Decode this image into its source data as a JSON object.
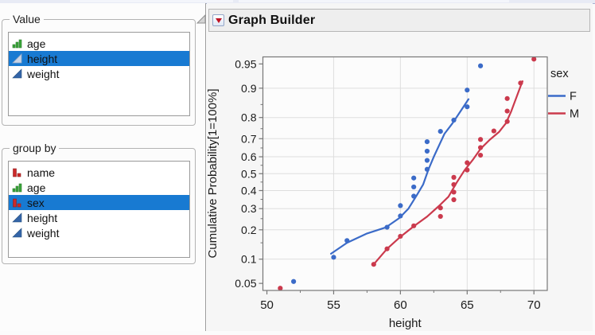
{
  "report": {
    "title": "Graph Builder"
  },
  "panels": {
    "value": {
      "title": "Value",
      "items": [
        {
          "label": "age",
          "icon": "green-bars-icon",
          "selected": false
        },
        {
          "label": "height",
          "icon": "pale-triangle-icon",
          "selected": true
        },
        {
          "label": "weight",
          "icon": "blue-triangle-icon",
          "selected": false
        }
      ]
    },
    "group_by": {
      "title": "group by",
      "items": [
        {
          "label": "name",
          "icon": "red-bars-icon",
          "selected": false
        },
        {
          "label": "age",
          "icon": "green-bars-icon",
          "selected": false
        },
        {
          "label": "sex",
          "icon": "red-bars-icon",
          "selected": true
        },
        {
          "label": "height",
          "icon": "blue-triangle-icon",
          "selected": false
        },
        {
          "label": "weight",
          "icon": "blue-triangle-icon",
          "selected": false
        }
      ]
    }
  },
  "colors": {
    "selection": "#187AD2",
    "series_f": "#3B6BC8",
    "series_m": "#CB3A4D"
  },
  "chart_data": {
    "type": "scatter",
    "title": "Graph Builder",
    "xlabel": "height",
    "ylabel": "Cumulative Probability[1=100%]",
    "y_scale": "normal-quantile",
    "xlim": [
      49.7,
      71
    ],
    "ylim_probability": [
      0.04,
      0.96
    ],
    "x_major_ticks": [
      50,
      55,
      60,
      65,
      70
    ],
    "x_minor_ticks": [
      52.5,
      57.5,
      62.5,
      67.5
    ],
    "y_major_ticks": [
      0.05,
      0.1,
      0.2,
      0.3,
      0.4,
      0.5,
      0.6,
      0.7,
      0.8,
      0.9,
      0.95
    ],
    "y_minor_ticks": [
      0.15,
      0.25,
      0.35,
      0.45,
      0.55,
      0.65,
      0.75,
      0.85
    ],
    "grid_x": [
      55,
      60,
      65,
      70
    ],
    "grid_y": [
      0.1,
      0.2,
      0.3,
      0.4,
      0.5,
      0.6,
      0.7,
      0.8,
      0.9
    ],
    "grid": true,
    "legend": {
      "title": "sex",
      "position": "right",
      "entries": [
        {
          "label": "F",
          "color": "#3B6BC8"
        },
        {
          "label": "M",
          "color": "#CB3A4D"
        }
      ]
    },
    "series": [
      {
        "name": "F",
        "color": "#3B6BC8",
        "points": [
          [
            52,
            0.053
          ],
          [
            55,
            0.105
          ],
          [
            56,
            0.158
          ],
          [
            59,
            0.211
          ],
          [
            60,
            0.263
          ],
          [
            60,
            0.316
          ],
          [
            61,
            0.368
          ],
          [
            61,
            0.421
          ],
          [
            61,
            0.474
          ],
          [
            62,
            0.526
          ],
          [
            62,
            0.579
          ],
          [
            62,
            0.632
          ],
          [
            62,
            0.684
          ],
          [
            63,
            0.737
          ],
          [
            64,
            0.789
          ],
          [
            65,
            0.842
          ],
          [
            65,
            0.895
          ],
          [
            66,
            0.947
          ]
        ],
        "smooth": [
          [
            54.8,
            0.115
          ],
          [
            56.0,
            0.15
          ],
          [
            57.5,
            0.185
          ],
          [
            58.9,
            0.21
          ],
          [
            59.9,
            0.252
          ],
          [
            60.6,
            0.3
          ],
          [
            61.2,
            0.37
          ],
          [
            61.7,
            0.435
          ],
          [
            62.1,
            0.525
          ],
          [
            62.5,
            0.6
          ],
          [
            62.9,
            0.665
          ],
          [
            63.3,
            0.725
          ],
          [
            63.9,
            0.775
          ],
          [
            64.5,
            0.825
          ],
          [
            65.1,
            0.868
          ]
        ]
      },
      {
        "name": "M",
        "color": "#CB3A4D",
        "points": [
          [
            51,
            0.043
          ],
          [
            58,
            0.087
          ],
          [
            59,
            0.13
          ],
          [
            60,
            0.174
          ],
          [
            61,
            0.217
          ],
          [
            63,
            0.261
          ],
          [
            63,
            0.304
          ],
          [
            64,
            0.348
          ],
          [
            64,
            0.391
          ],
          [
            64,
            0.435
          ],
          [
            64,
            0.478
          ],
          [
            65,
            0.522
          ],
          [
            65,
            0.565
          ],
          [
            66,
            0.609
          ],
          [
            66,
            0.652
          ],
          [
            66,
            0.696
          ],
          [
            67,
            0.739
          ],
          [
            68,
            0.783
          ],
          [
            68,
            0.826
          ],
          [
            68,
            0.87
          ],
          [
            69,
            0.913
          ],
          [
            70,
            0.957
          ]
        ],
        "smooth": [
          [
            58.0,
            0.087
          ],
          [
            59.0,
            0.13
          ],
          [
            60.0,
            0.172
          ],
          [
            61.0,
            0.215
          ],
          [
            62.0,
            0.26
          ],
          [
            62.9,
            0.315
          ],
          [
            63.6,
            0.365
          ],
          [
            64.2,
            0.445
          ],
          [
            64.8,
            0.52
          ],
          [
            65.4,
            0.58
          ],
          [
            66.0,
            0.645
          ],
          [
            66.7,
            0.695
          ],
          [
            67.4,
            0.735
          ],
          [
            67.9,
            0.775
          ],
          [
            68.3,
            0.825
          ],
          [
            68.7,
            0.875
          ],
          [
            69.0,
            0.905
          ],
          [
            69.15,
            0.917
          ]
        ]
      }
    ]
  }
}
